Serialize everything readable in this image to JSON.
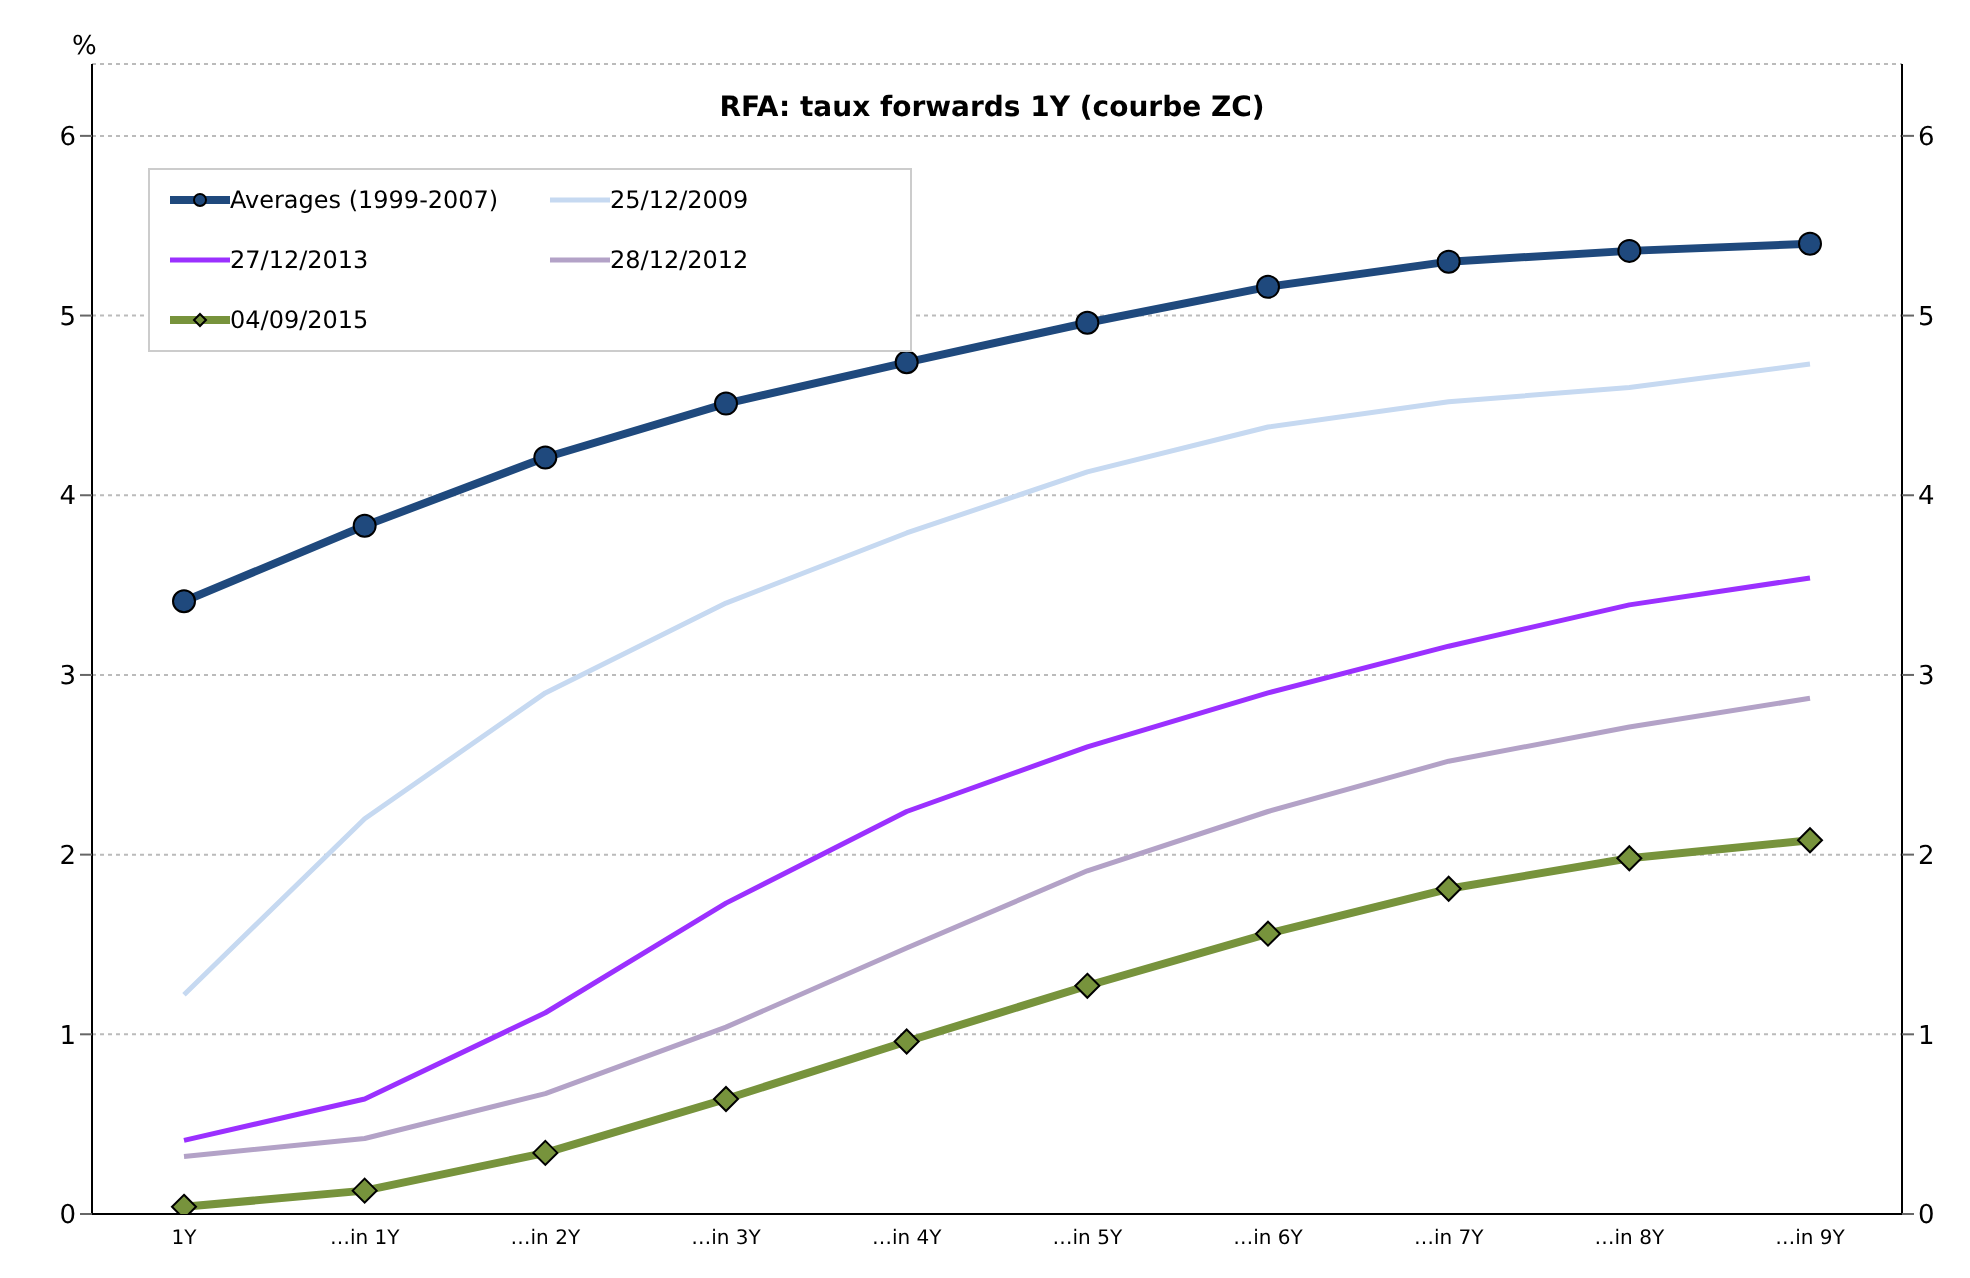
{
  "chart_data": {
    "type": "line",
    "title": "RFA: taux forwards 1Y (courbe ZC)",
    "ylabel": "%",
    "categories": [
      "1Y",
      "…in 1Y",
      "…in 2Y",
      "…in 3Y",
      "…in 4Y",
      "…in 5Y",
      "…in 6Y",
      "…in 7Y",
      "…in 8Y",
      "…in 9Y"
    ],
    "series": [
      {
        "name": "Averages (1999-2007)",
        "color": "#1f497d",
        "marker": "circle",
        "values": [
          3.41,
          3.83,
          4.21,
          4.51,
          4.74,
          4.96,
          5.16,
          5.3,
          5.36,
          5.4
        ]
      },
      {
        "name": "25/12/2009",
        "color": "#c6d9f1",
        "marker": "none",
        "values": [
          1.22,
          2.2,
          2.9,
          3.4,
          3.79,
          4.13,
          4.38,
          4.52,
          4.6,
          4.73
        ]
      },
      {
        "name": "27/12/2013",
        "color": "#9b30ff",
        "marker": "none",
        "values": [
          0.41,
          0.64,
          1.12,
          1.73,
          2.24,
          2.6,
          2.9,
          3.16,
          3.39,
          3.54
        ]
      },
      {
        "name": "28/12/2012",
        "color": "#b3a2c7",
        "marker": "none",
        "values": [
          0.32,
          0.42,
          0.67,
          1.04,
          1.48,
          1.91,
          2.24,
          2.52,
          2.71,
          2.87
        ]
      },
      {
        "name": "04/09/2015",
        "color": "#77933c",
        "marker": "diamond",
        "values": [
          0.04,
          0.13,
          0.34,
          0.64,
          0.96,
          1.27,
          1.56,
          1.81,
          1.98,
          2.08
        ]
      }
    ],
    "ylim": [
      0,
      6.4
    ],
    "yticks": [
      0,
      1,
      2,
      3,
      4,
      5,
      6
    ],
    "y2lim": [
      0,
      6.4
    ],
    "y2ticks": [
      0,
      1,
      2,
      3,
      4,
      5,
      6
    ],
    "grid": "y",
    "legend": "top left"
  }
}
